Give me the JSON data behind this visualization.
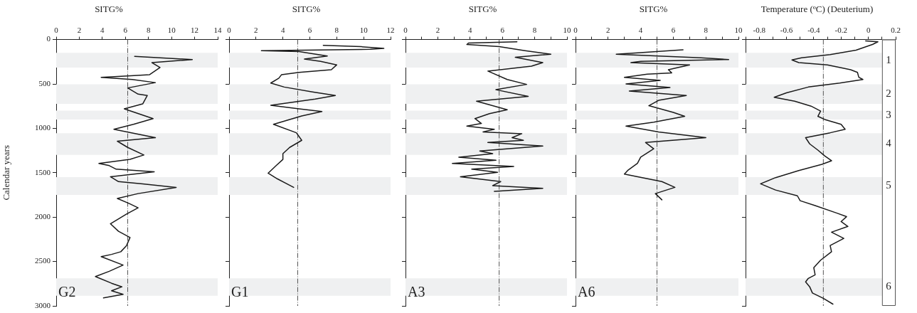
{
  "chart_data": [
    {
      "type": "line",
      "title": "SITG%",
      "ylabel": "Calendar years",
      "xlim": [
        0,
        14
      ],
      "xticks": [
        0,
        2,
        4,
        6,
        8,
        10,
        12,
        14
      ],
      "ylim": [
        3000,
        0
      ],
      "yticks": [
        0,
        500,
        1000,
        1500,
        2000,
        2500,
        3000
      ],
      "marker": "none",
      "series": [
        {
          "color": "#1a1a1a",
          "x": [
            6.8,
            11.8,
            8.3,
            9.0,
            8.1,
            6.2,
            3.9,
            6.6,
            8.6,
            6.2,
            7.1,
            7.9,
            7.5,
            5.9,
            8.4,
            6.7,
            5.0,
            8.6,
            5.3,
            6.2,
            7.6,
            6.4,
            3.7,
            4.6,
            5.2,
            8.5,
            4.7,
            5.4,
            7.5,
            10.4,
            7.1,
            5.3,
            6.3,
            7.1,
            6.1,
            4.7,
            5.4,
            6.4,
            6.1,
            5.6,
            4.8,
            3.9,
            5.8,
            4.6,
            3.4,
            4.8,
            5.7,
            4.8,
            5.8,
            4.1
          ],
          "values": [
            190,
            225,
            260,
            315,
            395,
            410,
            425,
            450,
            485,
            545,
            615,
            630,
            725,
            780,
            890,
            955,
            1010,
            1105,
            1145,
            1215,
            1300,
            1350,
            1395,
            1420,
            1460,
            1490,
            1545,
            1600,
            1625,
            1665,
            1735,
            1790,
            1845,
            1895,
            1965,
            2075,
            2160,
            2230,
            2320,
            2390,
            2420,
            2445,
            2540,
            2610,
            2670,
            2745,
            2785,
            2830,
            2870,
            2910
          ]
        }
      ],
      "ref_lines": [
        {
          "axis": "x",
          "value": 6.2,
          "color": "#555555",
          "line_style": "dashdot"
        }
      ],
      "bands": [
        {
          "axis": "y",
          "from": 150,
          "to": 315,
          "color": "#eff0f1"
        },
        {
          "axis": "y",
          "from": 505,
          "to": 725,
          "color": "#eff0f1"
        },
        {
          "axis": "y",
          "from": 800,
          "to": 900,
          "color": "#eff0f1"
        },
        {
          "axis": "y",
          "from": 1055,
          "to": 1300,
          "color": "#eff0f1"
        },
        {
          "axis": "y",
          "from": 1550,
          "to": 1750,
          "color": "#eff0f1"
        },
        {
          "axis": "y",
          "from": 2690,
          "to": 2885,
          "color": "#eff0f1"
        }
      ],
      "annotations": [
        "G2"
      ]
    },
    {
      "type": "line",
      "title": "SITG%",
      "xlim": [
        0,
        12
      ],
      "xticks": [
        0,
        2,
        4,
        6,
        8,
        10,
        12
      ],
      "ylim": [
        3000,
        0
      ],
      "yticks": [
        0,
        500,
        1000,
        1500,
        2000,
        2500,
        3000
      ],
      "tick_labels": "x",
      "marker": "none",
      "series": [
        {
          "color": "#1a1a1a",
          "x": [
            7.0,
            9.8,
            11.5,
            10.5,
            2.4,
            5.2,
            7.3,
            5.6,
            6.8,
            8.0,
            7.6,
            5.2,
            3.9,
            3.7,
            3.1,
            4.1,
            6.2,
            7.9,
            6.4,
            3.1,
            5.2,
            6.9,
            5.4,
            3.3,
            5.0,
            5.4,
            4.5,
            4.0,
            4.0,
            3.5,
            2.9,
            3.6,
            4.8
          ],
          "values": [
            65,
            80,
            100,
            110,
            125,
            135,
            185,
            220,
            245,
            285,
            340,
            370,
            395,
            435,
            490,
            535,
            590,
            630,
            670,
            740,
            780,
            810,
            860,
            955,
            1050,
            1135,
            1215,
            1285,
            1350,
            1420,
            1505,
            1570,
            1665
          ]
        }
      ],
      "ref_lines": [
        {
          "axis": "x",
          "value": 5.1,
          "color": "#555555",
          "line_style": "dashdot"
        }
      ],
      "bands": [
        {
          "axis": "y",
          "from": 150,
          "to": 315,
          "color": "#eff0f1"
        },
        {
          "axis": "y",
          "from": 505,
          "to": 725,
          "color": "#eff0f1"
        },
        {
          "axis": "y",
          "from": 800,
          "to": 900,
          "color": "#eff0f1"
        },
        {
          "axis": "y",
          "from": 1055,
          "to": 1300,
          "color": "#eff0f1"
        },
        {
          "axis": "y",
          "from": 1550,
          "to": 1750,
          "color": "#eff0f1"
        },
        {
          "axis": "y",
          "from": 2690,
          "to": 2885,
          "color": "#eff0f1"
        }
      ],
      "annotations": [
        "G1"
      ]
    },
    {
      "type": "line",
      "title": "SITG%",
      "xlim": [
        0,
        10
      ],
      "xticks": [
        0,
        {
          "value": 1,
          "label": null
        },
        2,
        {
          "value": 3,
          "label": null
        },
        4,
        {
          "value": 5,
          "label": null
        },
        6,
        {
          "value": 7,
          "label": null
        },
        8,
        {
          "value": 9,
          "label": null
        },
        10
      ],
      "ylim": [
        3000,
        0
      ],
      "yticks": [
        0,
        500,
        1000,
        1500,
        2000,
        2500,
        3000
      ],
      "tick_labels": "x",
      "marker": "none",
      "series": [
        {
          "color": "#1a1a1a",
          "x": [
            6.9,
            3.9,
            3.8,
            5.8,
            7.4,
            9.0,
            6.8,
            8.5,
            7.8,
            5.1,
            6.3,
            7.5,
            5.6,
            7.6,
            4.4,
            6.3,
            5.2,
            4.3,
            4.7,
            3.8,
            5.5,
            4.8,
            7.2,
            6.6,
            7.3,
            5.1,
            8.5,
            4.6,
            5.4,
            3.3,
            5.6,
            2.9,
            6.7,
            4.1,
            5.7,
            3.4,
            5.9,
            5.4,
            8.5,
            5.5
          ],
          "values": [
            25,
            40,
            55,
            80,
            125,
            165,
            200,
            260,
            300,
            355,
            450,
            505,
            565,
            640,
            695,
            790,
            835,
            890,
            945,
            975,
            1010,
            1040,
            1060,
            1105,
            1135,
            1160,
            1200,
            1255,
            1285,
            1325,
            1360,
            1395,
            1430,
            1460,
            1495,
            1545,
            1600,
            1645,
            1675,
            1710
          ]
        }
      ],
      "ref_lines": [
        {
          "axis": "x",
          "value": 5.8,
          "color": "#555555",
          "line_style": "dashdot"
        }
      ],
      "bands": [
        {
          "axis": "y",
          "from": 150,
          "to": 315,
          "color": "#eff0f1"
        },
        {
          "axis": "y",
          "from": 505,
          "to": 725,
          "color": "#eff0f1"
        },
        {
          "axis": "y",
          "from": 800,
          "to": 900,
          "color": "#eff0f1"
        },
        {
          "axis": "y",
          "from": 1055,
          "to": 1300,
          "color": "#eff0f1"
        },
        {
          "axis": "y",
          "from": 1550,
          "to": 1750,
          "color": "#eff0f1"
        },
        {
          "axis": "y",
          "from": 2690,
          "to": 2885,
          "color": "#eff0f1"
        }
      ],
      "annotations": [
        "A3"
      ]
    },
    {
      "type": "line",
      "title": "SITG%",
      "xlim": [
        0,
        10
      ],
      "xticks": [
        0,
        {
          "value": 1,
          "label": null
        },
        2,
        {
          "value": 3,
          "label": null
        },
        4,
        {
          "value": 5,
          "label": null
        },
        6,
        {
          "value": 7,
          "label": null
        },
        8,
        {
          "value": 9,
          "label": null
        },
        10
      ],
      "ylim": [
        3000,
        0
      ],
      "yticks": [
        0,
        500,
        1000,
        1500,
        2000,
        2500,
        3000
      ],
      "tick_labels": "x",
      "marker": "none",
      "series": [
        {
          "color": "#1a1a1a",
          "x": [
            6.6,
            2.5,
            7.7,
            9.4,
            4.0,
            3.4,
            7.0,
            5.7,
            5.9,
            4.4,
            3.0,
            5.2,
            3.1,
            5.8,
            3.3,
            6.8,
            5.1,
            4.5,
            6.0,
            6.7,
            4.8,
            3.1,
            5.1,
            8.0,
            4.3,
            4.8,
            4.0,
            3.8,
            3.2,
            3.0,
            5.3,
            6.1,
            4.9,
            5.3
          ],
          "values": [
            115,
            165,
            205,
            225,
            245,
            260,
            285,
            340,
            375,
            390,
            425,
            460,
            500,
            540,
            580,
            630,
            685,
            745,
            820,
            865,
            930,
            975,
            1040,
            1105,
            1160,
            1230,
            1325,
            1395,
            1475,
            1515,
            1600,
            1665,
            1735,
            1805
          ]
        }
      ],
      "ref_lines": [
        {
          "axis": "x",
          "value": 5.0,
          "color": "#555555",
          "line_style": "dashdot"
        }
      ],
      "bands": [
        {
          "axis": "y",
          "from": 150,
          "to": 315,
          "color": "#eff0f1"
        },
        {
          "axis": "y",
          "from": 505,
          "to": 725,
          "color": "#eff0f1"
        },
        {
          "axis": "y",
          "from": 800,
          "to": 900,
          "color": "#eff0f1"
        },
        {
          "axis": "y",
          "from": 1055,
          "to": 1300,
          "color": "#eff0f1"
        },
        {
          "axis": "y",
          "from": 1550,
          "to": 1750,
          "color": "#eff0f1"
        },
        {
          "axis": "y",
          "from": 2690,
          "to": 2885,
          "color": "#eff0f1"
        }
      ],
      "annotations": [
        "A6"
      ]
    },
    {
      "type": "line",
      "title": "Temperature (ºC) (Deuterium)",
      "xlim": [
        -0.9,
        0.2
      ],
      "xticks": [
        {
          "value": -0.9,
          "label": null
        },
        -0.8,
        {
          "value": -0.7,
          "label": null
        },
        -0.6,
        {
          "value": -0.5,
          "label": null
        },
        -0.4,
        {
          "value": -0.3,
          "label": null
        },
        -0.2,
        {
          "value": -0.1,
          "label": null
        },
        0,
        {
          "value": 0.1,
          "label": null
        },
        0.2
      ],
      "ylim": [
        3000,
        0
      ],
      "yticks": [
        0,
        500,
        1000,
        1500,
        2000,
        2500,
        3000
      ],
      "tick_labels": "x",
      "marker": "none",
      "series": [
        {
          "color": "#1a1a1a",
          "x": [
            -0.02,
            0.07,
            0.03,
            -0.09,
            -0.28,
            -0.49,
            -0.56,
            -0.51,
            -0.3,
            -0.13,
            -0.08,
            -0.07,
            -0.04,
            -0.21,
            -0.44,
            -0.6,
            -0.69,
            -0.54,
            -0.42,
            -0.35,
            -0.37,
            -0.32,
            -0.2,
            -0.17,
            -0.28,
            -0.46,
            -0.43,
            -0.37,
            -0.32,
            -0.27,
            -0.34,
            -0.51,
            -0.68,
            -0.79,
            -0.68,
            -0.52,
            -0.5,
            -0.39,
            -0.23,
            -0.16,
            -0.2,
            -0.15,
            -0.27,
            -0.18,
            -0.28,
            -0.27,
            -0.35,
            -0.4,
            -0.39,
            -0.44,
            -0.46,
            -0.43,
            -0.41,
            -0.33,
            -0.26
          ],
          "values": [
            15,
            25,
            55,
            120,
            170,
            205,
            230,
            260,
            285,
            340,
            370,
            425,
            450,
            490,
            535,
            600,
            650,
            695,
            750,
            805,
            865,
            900,
            955,
            1010,
            1050,
            1105,
            1175,
            1245,
            1310,
            1365,
            1405,
            1475,
            1555,
            1625,
            1695,
            1760,
            1815,
            1870,
            1955,
            1995,
            2050,
            2105,
            2170,
            2240,
            2320,
            2390,
            2485,
            2570,
            2650,
            2690,
            2730,
            2785,
            2855,
            2915,
            2980
          ]
        }
      ],
      "ref_lines": [
        {
          "axis": "x",
          "value": -0.33,
          "color": "#555555",
          "line_style": "dashdot"
        }
      ],
      "bands": [
        {
          "axis": "y",
          "from": 150,
          "to": 315,
          "color": "#eff0f1",
          "label": "1"
        },
        {
          "axis": "y",
          "from": 505,
          "to": 725,
          "color": "#eff0f1",
          "label": "2"
        },
        {
          "axis": "y",
          "from": 800,
          "to": 900,
          "color": "#eff0f1",
          "label": "3"
        },
        {
          "axis": "y",
          "from": 1055,
          "to": 1300,
          "color": "#eff0f1",
          "label": "4"
        },
        {
          "axis": "y",
          "from": 1550,
          "to": 1750,
          "color": "#eff0f1",
          "label": "5"
        },
        {
          "axis": "y",
          "from": 2690,
          "to": 2885,
          "color": "#eff0f1",
          "label": "6"
        },
        {
          "axis": "x",
          "from": 0.1,
          "to": 0.2,
          "color": "#ffffff"
        }
      ]
    }
  ]
}
